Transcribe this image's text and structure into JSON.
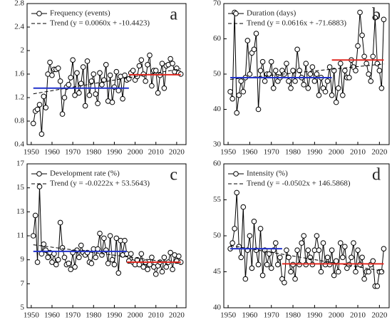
{
  "chart_data": [
    {
      "type": "line",
      "annotation": "a",
      "xlim": [
        1948,
        2024.5
      ],
      "xticks": [
        1950,
        1960,
        1970,
        1980,
        1990,
        2000,
        2010,
        2020
      ],
      "ylim": [
        0.4,
        2.8
      ],
      "yticks": [
        0.4,
        0.8,
        1.2,
        1.6,
        2,
        2.4,
        2.8
      ],
      "x": [
        1951,
        1952,
        1953,
        1954,
        1955,
        1956,
        1957,
        1958,
        1959,
        1960,
        1961,
        1962,
        1963,
        1964,
        1965,
        1966,
        1967,
        1968,
        1969,
        1970,
        1971,
        1972,
        1973,
        1974,
        1975,
        1976,
        1977,
        1978,
        1979,
        1980,
        1981,
        1982,
        1983,
        1984,
        1985,
        1986,
        1987,
        1988,
        1989,
        1990,
        1991,
        1992,
        1993,
        1994,
        1995,
        1996,
        1997,
        1998,
        1999,
        2000,
        2001,
        2002,
        2003,
        2004,
        2005,
        2006,
        2007,
        2008,
        2009,
        2010,
        2011,
        2012,
        2013,
        2014,
        2015,
        2016,
        2017,
        2018,
        2019,
        2020,
        2021,
        2022
      ],
      "series": [
        {
          "name": "Frequency (events)",
          "color": "#000000",
          "marker": "circle",
          "values": [
            0.76,
            0.97,
            1.0,
            1.08,
            0.58,
            1.22,
            1.03,
            1.6,
            1.8,
            1.58,
            1.68,
            1.68,
            1.7,
            1.48,
            0.92,
            1.2,
            1.38,
            1.42,
            1.54,
            1.84,
            1.24,
            1.62,
            1.28,
            1.44,
            1.72,
            1.06,
            1.82,
            1.24,
            1.48,
            1.6,
            1.26,
            1.1,
            1.62,
            1.42,
            1.5,
            1.76,
            1.14,
            1.58,
            1.12,
            1.38,
            1.64,
            1.32,
            1.56,
            1.18,
            1.58,
            1.5,
            1.52,
            1.62,
            1.66,
            1.5,
            1.56,
            1.74,
            1.84,
            1.6,
            1.48,
            1.76,
            1.92,
            1.4,
            1.66,
            1.66,
            1.28,
            1.58,
            1.78,
            1.36,
            1.74,
            1.76,
            1.86,
            1.78,
            1.64,
            1.7,
            1.62,
            1.6
          ]
        },
        {
          "name": "Trend (y = 0.0060x + -10.4423)",
          "color": "#000000",
          "dashed": true,
          "x": [
            1951,
            2022
          ],
          "values": [
            1.2637,
            1.6897
          ]
        },
        {
          "color": "#2233cc",
          "x": [
            1951,
            1997
          ],
          "values": [
            1.36,
            1.36
          ]
        },
        {
          "color": "#e02a22",
          "x": [
            1997,
            2022
          ],
          "values": [
            1.59,
            1.59
          ]
        }
      ]
    },
    {
      "type": "line",
      "annotation": "b",
      "xlim": [
        1948,
        2024.5
      ],
      "xticks": [
        1950,
        1960,
        1970,
        1980,
        1990,
        2000,
        2010,
        2020
      ],
      "ylim": [
        30,
        70
      ],
      "yticks": [
        30,
        40,
        50,
        60,
        70
      ],
      "x": [
        1951,
        1952,
        1953,
        1954,
        1955,
        1956,
        1957,
        1958,
        1959,
        1960,
        1961,
        1962,
        1963,
        1964,
        1965,
        1966,
        1967,
        1968,
        1969,
        1970,
        1971,
        1972,
        1973,
        1974,
        1975,
        1976,
        1977,
        1978,
        1979,
        1980,
        1981,
        1982,
        1983,
        1984,
        1985,
        1986,
        1987,
        1988,
        1989,
        1990,
        1991,
        1992,
        1993,
        1994,
        1995,
        1996,
        1997,
        1998,
        1999,
        2000,
        2001,
        2002,
        2003,
        2004,
        2005,
        2006,
        2007,
        2008,
        2009,
        2010,
        2011,
        2012,
        2013,
        2014,
        2015,
        2016,
        2017,
        2018,
        2019,
        2020,
        2021,
        2022
      ],
      "series": [
        {
          "name": "Duration (days)",
          "color": "#000000",
          "marker": "circle",
          "values": [
            45,
            43,
            67.5,
            39,
            44,
            48,
            45,
            49,
            59.5,
            50,
            56,
            57,
            61.5,
            40,
            51,
            53.5,
            48,
            50,
            50,
            53.5,
            46,
            51,
            48,
            49,
            51,
            50,
            53,
            48,
            46,
            51,
            48,
            57,
            51,
            49,
            47,
            53,
            46,
            50,
            52,
            48,
            50,
            44,
            49,
            46,
            45,
            48,
            52,
            44,
            51,
            42,
            46,
            53,
            44,
            51,
            49,
            49,
            54,
            52,
            51,
            58,
            67.5,
            61,
            55,
            53,
            50,
            48,
            55,
            66,
            53,
            51,
            46,
            65.5
          ]
        },
        {
          "name": "Trend (y = 0.0616x + -71.6883)",
          "color": "#000000",
          "dashed": true,
          "x": [
            1951,
            2022
          ],
          "values": [
            48.49,
            52.87
          ]
        },
        {
          "color": "#2233cc",
          "x": [
            1951,
            1998
          ],
          "values": [
            49,
            49
          ]
        },
        {
          "color": "#e02a22",
          "x": [
            1998,
            2022
          ],
          "values": [
            54,
            54
          ]
        }
      ]
    },
    {
      "type": "line",
      "annotation": "c",
      "xlim": [
        1948,
        2024.5
      ],
      "xticks": [
        1950,
        1960,
        1970,
        1980,
        1990,
        2000,
        2010,
        2020
      ],
      "ylim": [
        5,
        17
      ],
      "yticks": [
        5,
        7,
        9,
        11,
        13,
        15,
        17
      ],
      "x": [
        1951,
        1952,
        1953,
        1954,
        1955,
        1956,
        1957,
        1958,
        1959,
        1960,
        1961,
        1962,
        1963,
        1964,
        1965,
        1966,
        1967,
        1968,
        1969,
        1970,
        1971,
        1972,
        1973,
        1974,
        1975,
        1976,
        1977,
        1978,
        1979,
        1980,
        1981,
        1982,
        1983,
        1984,
        1985,
        1986,
        1987,
        1988,
        1989,
        1990,
        1991,
        1992,
        1993,
        1994,
        1995,
        1996,
        1997,
        1998,
        1999,
        2000,
        2001,
        2002,
        2003,
        2004,
        2005,
        2006,
        2007,
        2008,
        2009,
        2010,
        2011,
        2012,
        2013,
        2014,
        2015,
        2016,
        2017,
        2018,
        2019,
        2020,
        2021,
        2022
      ],
      "series": [
        {
          "name": "Development rate (%)",
          "color": "#000000",
          "marker": "circle",
          "values": [
            11,
            12.7,
            8.8,
            15.1,
            9.5,
            10.3,
            9.8,
            9.2,
            9.6,
            8.8,
            9.5,
            8.6,
            9,
            12.1,
            10,
            9.2,
            8.6,
            8.7,
            8.2,
            9.6,
            8.4,
            9.8,
            9.2,
            10.2,
            9.6,
            9.4,
            9.6,
            8.8,
            8.7,
            9.9,
            9.2,
            9.9,
            11.2,
            9.4,
            10.8,
            9.8,
            8.7,
            11,
            9,
            8.6,
            10.8,
            7.9,
            10.6,
            9.4,
            10.6,
            9.5,
            8.9,
            9.5,
            8.8,
            8.6,
            9,
            8.6,
            9.5,
            8.4,
            8.8,
            8.2,
            8.6,
            9.2,
            8.4,
            7.8,
            8.5,
            8.8,
            8,
            9.2,
            8.4,
            8.8,
            9.6,
            8.2,
            9.4,
            8.9,
            9.3,
            8.8
          ]
        },
        {
          "name": "Trend (y = -0.0222x + 53.5643)",
          "color": "#000000",
          "dashed": true,
          "x": [
            1951,
            2022
          ],
          "values": [
            10.25,
            8.67
          ]
        },
        {
          "color": "#2233cc",
          "x": [
            1951,
            1996
          ],
          "values": [
            9.7,
            9.7
          ]
        },
        {
          "color": "#e02a22",
          "x": [
            1996,
            2022
          ],
          "values": [
            8.8,
            8.8
          ]
        }
      ]
    },
    {
      "type": "line",
      "annotation": "d",
      "xlim": [
        1948,
        2024.5
      ],
      "xticks": [
        1950,
        1960,
        1970,
        1980,
        1990,
        2000,
        2010,
        2020
      ],
      "ylim": [
        40,
        60
      ],
      "yticks": [
        40,
        45,
        50,
        55,
        60
      ],
      "x": [
        1951,
        1952,
        1953,
        1954,
        1955,
        1956,
        1957,
        1958,
        1959,
        1960,
        1961,
        1962,
        1963,
        1964,
        1965,
        1966,
        1967,
        1968,
        1969,
        1970,
        1971,
        1972,
        1973,
        1974,
        1975,
        1976,
        1977,
        1978,
        1979,
        1980,
        1981,
        1982,
        1983,
        1984,
        1985,
        1986,
        1987,
        1988,
        1989,
        1990,
        1991,
        1992,
        1993,
        1994,
        1995,
        1996,
        1997,
        1998,
        1999,
        2000,
        2001,
        2002,
        2003,
        2004,
        2005,
        2006,
        2007,
        2008,
        2009,
        2010,
        2011,
        2012,
        2013,
        2014,
        2015,
        2016,
        2017,
        2018,
        2019,
        2020,
        2021,
        2022
      ],
      "series": [
        {
          "name": "Intensity (%)",
          "color": "#000000",
          "marker": "circle",
          "values": [
            48.2,
            49,
            51,
            56,
            48.5,
            47,
            54,
            44,
            48,
            50,
            45.5,
            52,
            48,
            46,
            51,
            44.5,
            48,
            46,
            47.5,
            45.5,
            48,
            49,
            46,
            47,
            44,
            43.5,
            48,
            47,
            45,
            46,
            44,
            48,
            46,
            49,
            50,
            46,
            48,
            47,
            46,
            48,
            50,
            48,
            45,
            49,
            46,
            47,
            46,
            48,
            44.5,
            46.5,
            45,
            49,
            47,
            48.5,
            45.5,
            46,
            47,
            49,
            45,
            48,
            46,
            47,
            44,
            45,
            45,
            46,
            46.5,
            43,
            43,
            45,
            45,
            48.2
          ]
        },
        {
          "name": "Trend (y = -0.0502x + 146.5868)",
          "color": "#000000",
          "dashed": true,
          "x": [
            1951,
            2022
          ],
          "values": [
            48.65,
            45.08
          ]
        },
        {
          "color": "#2233cc",
          "x": [
            1951,
            1975
          ],
          "values": [
            48.2,
            48.2
          ]
        },
        {
          "color": "#e02a22",
          "x": [
            1975,
            2022
          ],
          "values": [
            46.1,
            46.1
          ]
        }
      ]
    }
  ]
}
